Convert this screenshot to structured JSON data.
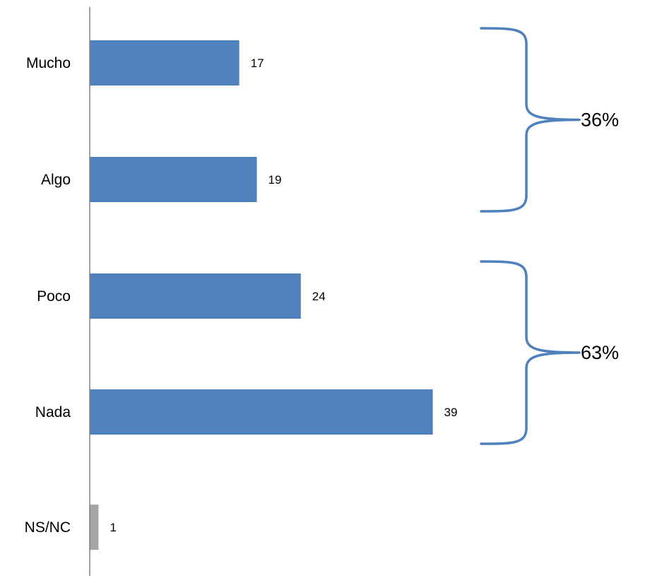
{
  "chart_data": {
    "type": "bar",
    "orientation": "horizontal",
    "categories": [
      "Mucho",
      "Algo",
      "Poco",
      "Nada",
      "NS/NC"
    ],
    "values": [
      17,
      19,
      24,
      39,
      1
    ],
    "value_labels": [
      "17",
      "19",
      "24",
      "39",
      "1"
    ],
    "colors": [
      "#4F81BD",
      "#4F81BD",
      "#4F81BD",
      "#4F81BD",
      "#A6A6A6"
    ],
    "grid": false,
    "legend": "none",
    "groups": [
      {
        "categories": [
          "Mucho",
          "Algo"
        ],
        "label": "36%"
      },
      {
        "categories": [
          "Poco",
          "Nada"
        ],
        "label": "63%"
      }
    ],
    "brace_color": "#4F81BD",
    "axis_color": "#808080"
  }
}
